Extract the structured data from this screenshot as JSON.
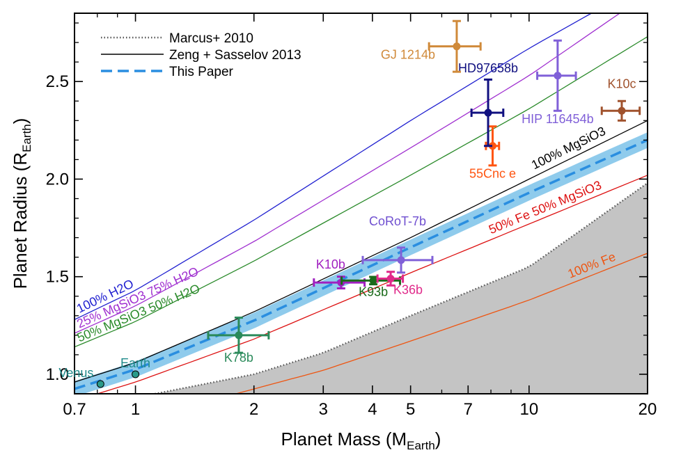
{
  "chart_data": {
    "type": "scatter",
    "title": "",
    "xlabel": {
      "main": "Planet Mass (M",
      "sub": "Earth",
      "close": ")"
    },
    "ylabel": {
      "main": "Planet Radius (R",
      "sub": "Earth",
      "close": ")"
    },
    "xscale": "log",
    "xlim": [
      0.7,
      20
    ],
    "ylim": [
      0.9,
      2.85
    ],
    "xticks": [
      {
        "v": 0.7,
        "label": "0.7"
      },
      {
        "v": 1,
        "label": "1"
      },
      {
        "v": 2,
        "label": "2"
      },
      {
        "v": 3,
        "label": "3"
      },
      {
        "v": 4,
        "label": "4"
      },
      {
        "v": 5,
        "label": "5"
      },
      {
        "v": 7,
        "label": "7"
      },
      {
        "v": 10,
        "label": "10"
      },
      {
        "v": 20,
        "label": "20"
      }
    ],
    "xminor": [
      0.8,
      0.9,
      6,
      8,
      9
    ],
    "yticks": [
      {
        "v": 1.0,
        "label": "1.0"
      },
      {
        "v": 1.5,
        "label": "1.5"
      },
      {
        "v": 2.0,
        "label": "2.0"
      },
      {
        "v": 2.5,
        "label": "2.5"
      }
    ],
    "yminor": [
      1.1,
      1.2,
      1.3,
      1.4,
      1.6,
      1.7,
      1.8,
      1.9,
      2.1,
      2.2,
      2.3,
      2.4,
      2.6,
      2.7,
      2.8
    ],
    "legend": {
      "position": "top-left",
      "entries": [
        {
          "label": "Marcus+ 2010",
          "style": "dotted",
          "color": "#555555"
        },
        {
          "label": "Zeng + Sasselov 2013",
          "style": "solid",
          "color": "#000000"
        },
        {
          "label": "This Paper",
          "style": "dashed",
          "color": "#2a8ee0"
        }
      ]
    },
    "curves": [
      {
        "name": "100% H2O",
        "color": "#2020d0",
        "points": [
          [
            0.7,
            1.28
          ],
          [
            1,
            1.43
          ],
          [
            2,
            1.79
          ],
          [
            5,
            2.3
          ],
          [
            10,
            2.67
          ],
          [
            15,
            2.87
          ]
        ]
      },
      {
        "name": "25% MgSiO3 75% H2O",
        "color": "#a030d0",
        "points": [
          [
            0.7,
            1.21
          ],
          [
            1,
            1.35
          ],
          [
            2,
            1.68
          ],
          [
            5,
            2.16
          ],
          [
            10,
            2.53
          ],
          [
            17,
            2.85
          ]
        ]
      },
      {
        "name": "50% MgSiO3 50% H2O",
        "color": "#2a8a2a",
        "points": [
          [
            0.7,
            1.14
          ],
          [
            1,
            1.27
          ],
          [
            2,
            1.58
          ],
          [
            5,
            2.02
          ],
          [
            10,
            2.36
          ],
          [
            20,
            2.73
          ]
        ]
      },
      {
        "name": "100% MgSiO3",
        "color": "#000000",
        "points": [
          [
            0.7,
            0.96
          ],
          [
            1,
            1.06
          ],
          [
            2,
            1.32
          ],
          [
            5,
            1.7
          ],
          [
            10,
            2.0
          ],
          [
            20,
            2.3
          ]
        ]
      },
      {
        "name": "50% Fe 50% MgSiO3",
        "color": "#dd1111",
        "points": [
          [
            0.8,
            0.9
          ],
          [
            1,
            0.96
          ],
          [
            2,
            1.18
          ],
          [
            5,
            1.52
          ],
          [
            10,
            1.77
          ],
          [
            20,
            2.02
          ]
        ]
      },
      {
        "name": "100% Fe",
        "color": "#ee5511",
        "points": [
          [
            1.8,
            0.9
          ],
          [
            3,
            1.02
          ],
          [
            5,
            1.17
          ],
          [
            10,
            1.38
          ],
          [
            20,
            1.62
          ]
        ]
      }
    ],
    "marcus_curve": [
      [
        1.12,
        0.9
      ],
      [
        2,
        1.0
      ],
      [
        3,
        1.11
      ],
      [
        5,
        1.3
      ],
      [
        10,
        1.55
      ],
      [
        20,
        1.98
      ]
    ],
    "this_paper_fit": {
      "points": [
        [
          0.7,
          0.925
        ],
        [
          1,
          1.025
        ],
        [
          2,
          1.275
        ],
        [
          5,
          1.65
        ],
        [
          10,
          1.93
        ],
        [
          20,
          2.2
        ]
      ],
      "band": 0.04
    },
    "planets": [
      {
        "name": "Venus",
        "mass": 0.815,
        "radius": 0.95,
        "color": "#1f8a8a",
        "fill": "#2a9a8a",
        "label_color": "#1f8a8a",
        "label_dx": -35,
        "label_dy": -10
      },
      {
        "name": "Earth",
        "mass": 1.0,
        "radius": 1.0,
        "color": "#1f8a8a",
        "fill": "#2a9a8a",
        "label_color": "#1f8a8a",
        "label_dx": 0,
        "label_dy": -10
      },
      {
        "name": "K78b",
        "mass": 1.83,
        "radius": 1.2,
        "xerr": [
          0.3,
          0.35
        ],
        "yerr": 0.09,
        "color": "#2a8a5a",
        "label_color": "#2a8a5a",
        "label_dx": 0,
        "label_dy": 38
      },
      {
        "name": "K10b",
        "mass": 3.33,
        "radius": 1.47,
        "xerr": [
          0.49,
          0.49
        ],
        "yerr": 0.03,
        "color": "#a020c0",
        "label_color": "#a020c0",
        "label_dx": -15,
        "label_dy": -20
      },
      {
        "name": "K93b",
        "mass": 4.02,
        "radius": 1.48,
        "xerr": [
          0.68,
          0.68
        ],
        "yerr": 0.019,
        "color": "#1a6a1a",
        "label_color": "#1a6a1a",
        "label_dx": 0,
        "label_dy": 22
      },
      {
        "name": "K36b",
        "mass": 4.45,
        "radius": 1.49,
        "xerr": [
          0.33,
          0.33
        ],
        "yerr": 0.035,
        "color": "#e02a8a",
        "label_color": "#e02a8a",
        "label_dx": 25,
        "label_dy": 22
      },
      {
        "name": "CoRoT-7b",
        "mass": 4.73,
        "radius": 1.585,
        "xerr": [
          0.95,
          0.95
        ],
        "yerr": 0.064,
        "color": "#8060d8",
        "label_color": "#7050d0",
        "label_dx": -5,
        "label_dy": -50
      },
      {
        "name": "55Cnc e",
        "mass": 8.08,
        "radius": 2.17,
        "xerr": [
          0.31,
          0.31
        ],
        "yerr": 0.1,
        "color": "#ff5511",
        "label_color": "#ff5511",
        "label_dx": 0,
        "label_dy": 46
      },
      {
        "name": "HD97658b",
        "mass": 7.87,
        "radius": 2.34,
        "xerr": [
          0.73,
          0.73
        ],
        "yerr": 0.17,
        "color": "#101080",
        "label_color": "#101080",
        "label_dx": 0,
        "label_dy": -58
      },
      {
        "name": "GJ 1214b",
        "mass": 6.55,
        "radius": 2.68,
        "xerr": [
          0.98,
          0.98
        ],
        "yerr": 0.13,
        "color": "#d08a3a",
        "label_color": "#d08a3a",
        "label_dx": -70,
        "label_dy": 18
      },
      {
        "name": "HIP 116454b",
        "mass": 11.82,
        "radius": 2.53,
        "xerr": [
          1.33,
          1.33
        ],
        "yerr": 0.18,
        "color": "#8060d8",
        "label_color": "#8060d8",
        "label_dx": 0,
        "label_dy": 68
      },
      {
        "name": "K10c",
        "mass": 17.2,
        "radius": 2.35,
        "xerr": [
          1.9,
          1.9
        ],
        "yerr": 0.05,
        "color": "#a0522d",
        "label_color": "#a0522d",
        "label_dx": 0,
        "label_dy": -33
      }
    ]
  }
}
